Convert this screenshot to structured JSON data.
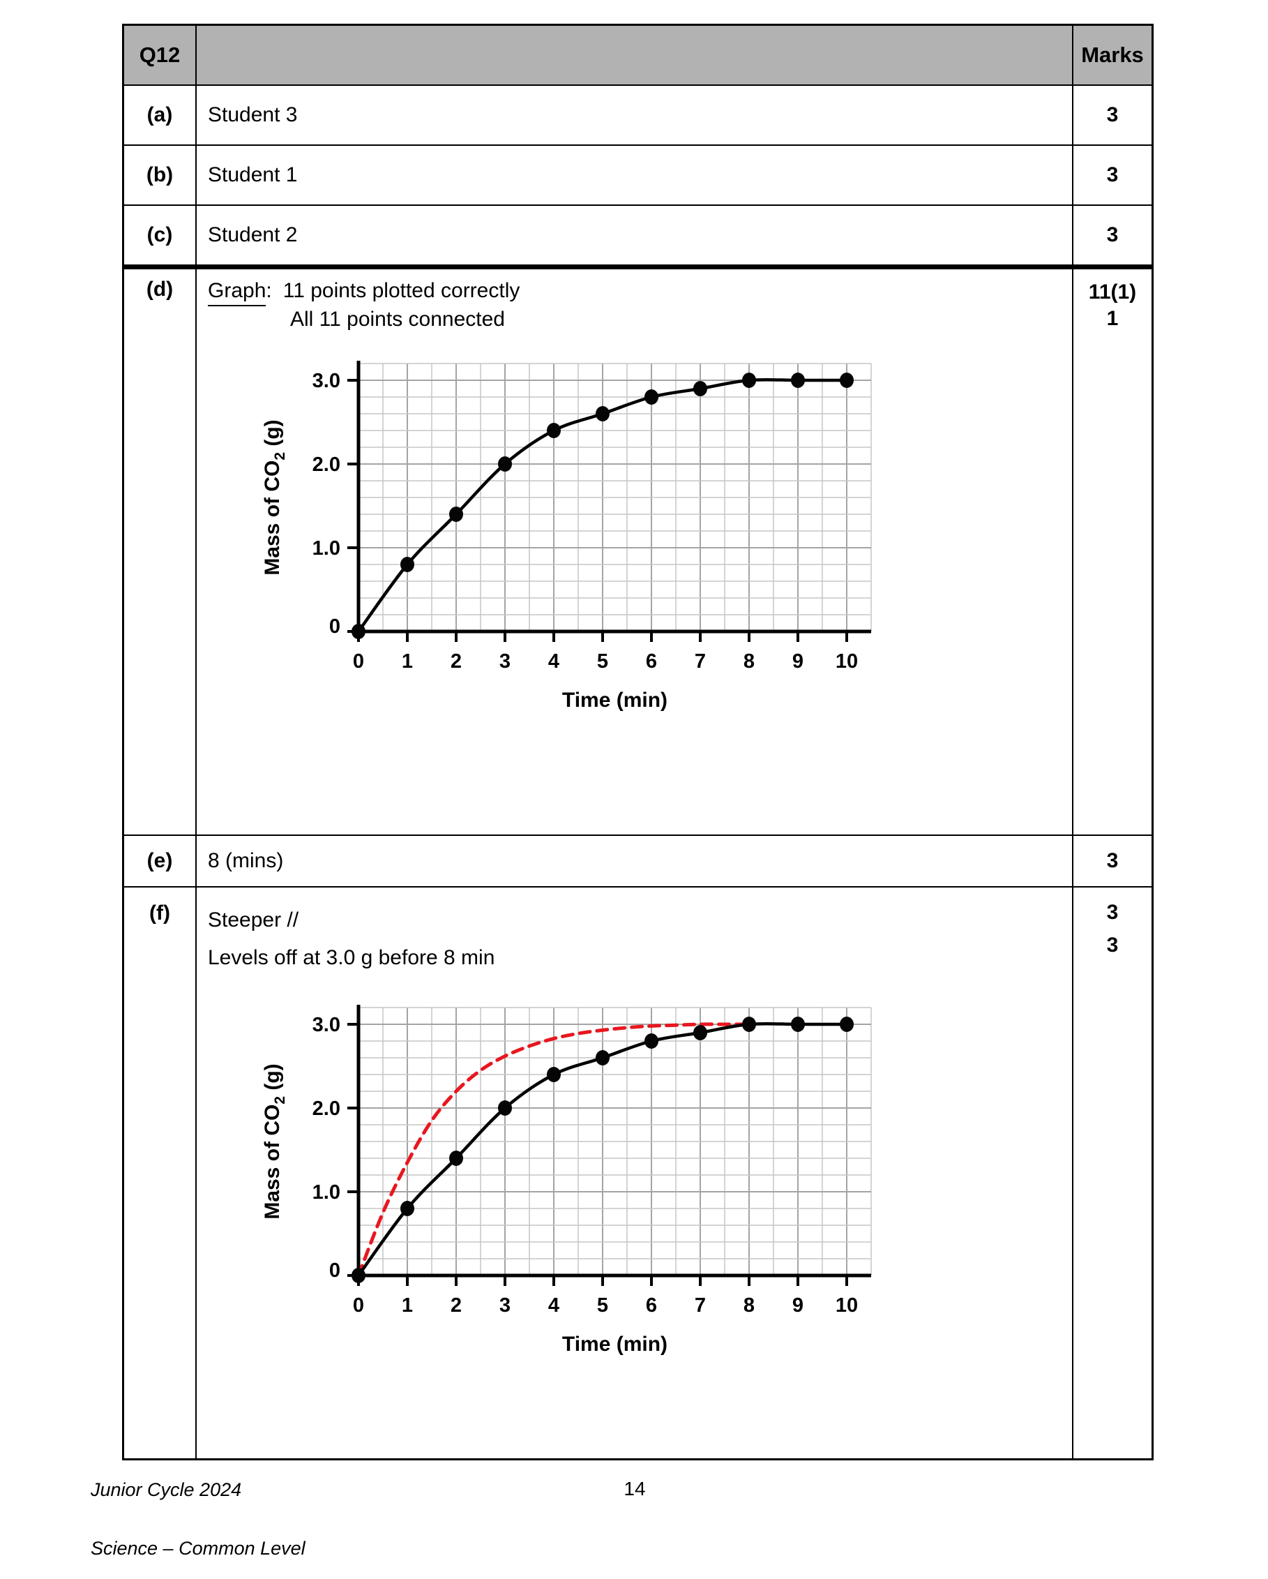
{
  "header": {
    "question": "Q12",
    "marks_title": "Marks"
  },
  "rows": [
    {
      "label": "(a)",
      "content": "Student 3",
      "marks": [
        "3"
      ]
    },
    {
      "label": "(b)",
      "content": "Student 1",
      "marks": [
        "3"
      ]
    },
    {
      "label": "(c)",
      "content": "Student 2",
      "marks": [
        "3"
      ]
    },
    {
      "label": "(d)",
      "graph_word": "Graph",
      "colon": ":",
      "line1": "11 points plotted correctly",
      "line2": "All 11 points connected",
      "marks": [
        "11(1)",
        "1"
      ]
    },
    {
      "label": "(e)",
      "content": "8 (mins)",
      "marks": [
        "3"
      ]
    },
    {
      "label": "(f)",
      "line1": "Steeper //",
      "line2": "Levels off at 3.0 g before 8 min",
      "marks": [
        "3",
        "3"
      ]
    }
  ],
  "footer": {
    "doc_line1": "Junior Cycle 2024",
    "doc_line2": "Science – Common Level",
    "page_number": "14"
  },
  "colors": {
    "header_bg": "#b2b2b2",
    "accent_red": "#e8171f",
    "grid_minor": "#c6c6c6",
    "grid_major": "#a4a4a4"
  },
  "chart_data": [
    {
      "type": "line",
      "xlabel": "Time (min)",
      "ylabel": "Mass of CO₂ (g)",
      "xlim": [
        0,
        10.5
      ],
      "ylim": [
        0,
        3.2
      ],
      "x_minor_step": 0.5,
      "y_minor_step": 0.2,
      "x_ticks": [
        0,
        1,
        2,
        3,
        4,
        5,
        6,
        7,
        8,
        9,
        10
      ],
      "y_ticks": [
        [
          0,
          "0"
        ],
        [
          1,
          "1.0"
        ],
        [
          2,
          "2.0"
        ],
        [
          3,
          "3.0"
        ]
      ],
      "grid": true,
      "legend": false,
      "series": [
        {
          "name": "mass of CO2 recorded (plotted points, connected)",
          "color": "#000000",
          "dashed": false,
          "markers": true,
          "x": [
            0,
            1,
            2,
            3,
            4,
            5,
            6,
            7,
            8,
            9,
            10
          ],
          "y": [
            0,
            0.8,
            1.4,
            2.0,
            2.4,
            2.6,
            2.8,
            2.9,
            3.0,
            3.0,
            3.0
          ]
        }
      ]
    },
    {
      "type": "line",
      "xlabel": "Time (min)",
      "ylabel": "Mass of CO₂ (g)",
      "xlim": [
        0,
        10.5
      ],
      "ylim": [
        0,
        3.2
      ],
      "x_minor_step": 0.5,
      "y_minor_step": 0.2,
      "x_ticks": [
        0,
        1,
        2,
        3,
        4,
        5,
        6,
        7,
        8,
        9,
        10
      ],
      "y_ticks": [
        [
          0,
          "0"
        ],
        [
          1,
          "1.0"
        ],
        [
          2,
          "2.0"
        ],
        [
          3,
          "3.0"
        ]
      ],
      "grid": true,
      "legend": false,
      "series": [
        {
          "name": "faster reaction sketch (steeper, levels off at 3.0 g before 8 min)",
          "color": "#e8171f",
          "dashed": true,
          "markers": false,
          "x": [
            0,
            0.5,
            1,
            1.5,
            2,
            2.5,
            3,
            3.5,
            4,
            4.5,
            5,
            5.5,
            6,
            6.5,
            7,
            7.5,
            8
          ],
          "y": [
            0,
            0.75,
            1.35,
            1.85,
            2.2,
            2.45,
            2.62,
            2.74,
            2.83,
            2.89,
            2.93,
            2.96,
            2.98,
            2.99,
            3.0,
            3.0,
            3.0
          ]
        },
        {
          "name": "mass of CO2 recorded (plotted points, connected)",
          "color": "#000000",
          "dashed": false,
          "markers": true,
          "x": [
            0,
            1,
            2,
            3,
            4,
            5,
            6,
            7,
            8,
            9,
            10
          ],
          "y": [
            0,
            0.8,
            1.4,
            2.0,
            2.4,
            2.6,
            2.8,
            2.9,
            3.0,
            3.0,
            3.0
          ]
        }
      ]
    }
  ]
}
